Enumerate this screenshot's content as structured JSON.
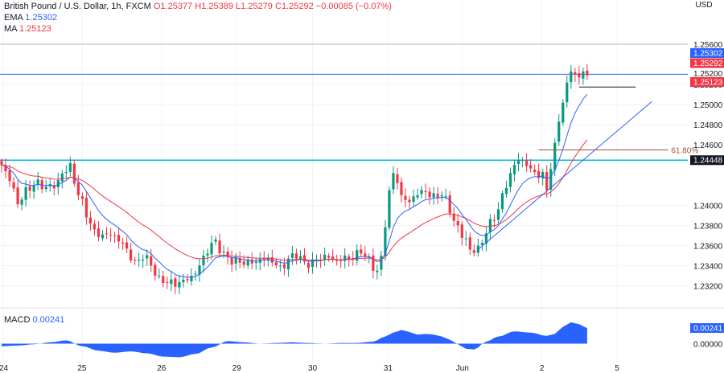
{
  "legend": {
    "symbol": "British Pound / U.S. Dollar, 1h, FXCM",
    "open_label": "O",
    "open": "1.25377",
    "high_label": "H",
    "high": "1.25389",
    "low_label": "L",
    "low": "1.25279",
    "close_label": "C",
    "close": "1.25292",
    "change": "−0.00085 (−0.07%)",
    "ema_label": "EMA",
    "ema_value": "1.25302",
    "ma_label": "MA",
    "ma_value": "1.25123",
    "macd_label": "MACD",
    "macd_value": "0.00241"
  },
  "colors": {
    "up": "#089981",
    "down": "#f23645",
    "ema": "#2962ff",
    "ma": "#f23645",
    "resistance": "#2962ff",
    "support": "#00bcd4",
    "trendline": "#2962ff",
    "fib": "#a0522d",
    "macd": "#2962ff",
    "dark_tag": "#131722"
  },
  "chart_data": [
    {
      "type": "candlestick",
      "title": "British Pound / U.S. Dollar, 1h, FXCM",
      "currency_label": "USD",
      "ylim": [
        1.2306,
        1.2576
      ],
      "y_ticks": [
        "1.25600",
        "1.25200",
        "1.25000",
        "1.24800",
        "1.24600",
        "1.24000",
        "1.23800",
        "1.23600",
        "1.23400",
        "1.23200"
      ],
      "y_tick_values": [
        1.256,
        1.252,
        1.25,
        1.248,
        1.246,
        1.24,
        1.238,
        1.236,
        1.234,
        1.232
      ],
      "x_ticks": [
        "24",
        "25",
        "26",
        "29",
        "30",
        "31",
        "Jun",
        "2",
        "5"
      ],
      "x_tick_positions": [
        0.5,
        19.9,
        39.6,
        58.2,
        77.0,
        95.7,
        114.1,
        133.8,
        152.4
      ],
      "bars_visible": 146,
      "anchors": [
        [
          0,
          1.244
        ],
        [
          2,
          1.2424
        ],
        [
          4,
          1.2401
        ],
        [
          6,
          1.2418
        ],
        [
          8,
          1.242
        ],
        [
          10,
          1.2416
        ],
        [
          12,
          1.2421
        ],
        [
          14,
          1.2425
        ],
        [
          16,
          1.2433
        ],
        [
          17,
          1.2442
        ],
        [
          19,
          1.241
        ],
        [
          21,
          1.2388
        ],
        [
          23,
          1.2376
        ],
        [
          25,
          1.2371
        ],
        [
          27,
          1.237
        ],
        [
          29,
          1.2364
        ],
        [
          31,
          1.2357
        ],
        [
          33,
          1.2345
        ],
        [
          35,
          1.2346
        ],
        [
          37,
          1.234
        ],
        [
          39,
          1.233
        ],
        [
          41,
          1.2323
        ],
        [
          43,
          1.2319
        ],
        [
          45,
          1.2326
        ],
        [
          47,
          1.233
        ],
        [
          49,
          1.234
        ],
        [
          51,
          1.2352
        ],
        [
          53,
          1.2366
        ],
        [
          55,
          1.2354
        ],
        [
          57,
          1.2341
        ],
        [
          59,
          1.2343
        ],
        [
          61,
          1.2346
        ],
        [
          63,
          1.2344
        ],
        [
          65,
          1.2346
        ],
        [
          67,
          1.2343
        ],
        [
          69,
          1.234
        ],
        [
          71,
          1.2347
        ],
        [
          73,
          1.2347
        ],
        [
          75,
          1.2344
        ],
        [
          77,
          1.2346
        ],
        [
          79,
          1.2345
        ],
        [
          81,
          1.2348
        ],
        [
          83,
          1.2345
        ],
        [
          85,
          1.235
        ],
        [
          87,
          1.2346
        ],
        [
          89,
          1.2352
        ],
        [
          91,
          1.2349
        ],
        [
          93,
          1.2335
        ],
        [
          94,
          1.235
        ],
        [
          95,
          1.2378
        ],
        [
          96,
          1.2415
        ],
        [
          97,
          1.2432
        ],
        [
          98,
          1.2422
        ],
        [
          99,
          1.241
        ],
        [
          101,
          1.2403
        ],
        [
          103,
          1.241
        ],
        [
          105,
          1.2413
        ],
        [
          107,
          1.2412
        ],
        [
          109,
          1.241
        ],
        [
          111,
          1.2392
        ],
        [
          113,
          1.238
        ],
        [
          115,
          1.2367
        ],
        [
          116,
          1.2356
        ],
        [
          118,
          1.236
        ],
        [
          120,
          1.2372
        ],
        [
          122,
          1.2385
        ],
        [
          123,
          1.2396
        ],
        [
          124,
          1.2412
        ],
        [
          126,
          1.2432
        ],
        [
          128,
          1.2445
        ],
        [
          130,
          1.2439
        ],
        [
          132,
          1.2433
        ],
        [
          134,
          1.2433
        ],
        [
          135,
          1.2415
        ],
        [
          136,
          1.2436
        ],
        [
          137,
          1.2462
        ],
        [
          138,
          1.2483
        ],
        [
          139,
          1.2502
        ],
        [
          140,
          1.2522
        ],
        [
          141,
          1.2533
        ],
        [
          142,
          1.253
        ],
        [
          143,
          1.2527
        ],
        [
          144,
          1.2533
        ],
        [
          145,
          1.2529
        ]
      ],
      "ema": {
        "name": "EMA",
        "value": 1.25302
      },
      "ma": {
        "name": "MA",
        "value": 1.25123
      },
      "support_line": 1.24448,
      "resistance_line": 1.25302,
      "fib": {
        "label": "61.80%",
        "value": 1.2455,
        "from_bar": 133,
        "to_bar": 165
      },
      "local_low_line": {
        "value": 1.25175,
        "from_bar": 143,
        "to_bar": 157
      },
      "trendline": {
        "from": [
          118,
          1.2356
        ],
        "to": [
          161,
          1.2503
        ]
      },
      "price_tags": [
        {
          "text": "1.25302",
          "value": 1.25302,
          "style": "blue"
        },
        {
          "text": "1.25292",
          "value": 1.25292,
          "style": "red"
        },
        {
          "text": "1.25200",
          "value": 1.252,
          "style": "plain"
        },
        {
          "text": "1.25123",
          "value": 1.25123,
          "style": "red"
        },
        {
          "text": "1.24448",
          "value": 1.24448,
          "style": "dark"
        }
      ]
    },
    {
      "type": "area",
      "title": "MACD",
      "ylim": [
        -0.0028,
        0.0049
      ],
      "y_ticks": [
        "0.00000"
      ],
      "y_tick_values": [
        0
      ],
      "value_tag": "0.00241",
      "value": 0.00241,
      "x": [
        0,
        4,
        8,
        12,
        16,
        20,
        24,
        28,
        32,
        36,
        40,
        44,
        48,
        52,
        56,
        60,
        64,
        68,
        72,
        76,
        80,
        84,
        88,
        92,
        95,
        97,
        99,
        101,
        103,
        105,
        107,
        109,
        111,
        113,
        115,
        117,
        120,
        123,
        127,
        131,
        135,
        137,
        139,
        141,
        143,
        145
      ],
      "values": [
        -0.0004,
        -0.0003,
        -0.0001,
        0.0002,
        0.0005,
        -0.0004,
        -0.0011,
        -0.0014,
        -0.0012,
        -0.0015,
        -0.002,
        -0.0021,
        -0.0016,
        -0.0006,
        0.0004,
        0.0002,
        0.0,
        0.0001,
        0.0002,
        0.0001,
        0.0,
        0.0001,
        0.0001,
        0.0003,
        0.0011,
        0.0017,
        0.0021,
        0.0018,
        0.0014,
        0.0015,
        0.0014,
        0.0011,
        0.0006,
        -0.0001,
        -0.0008,
        -0.0009,
        0.0003,
        0.0011,
        0.0019,
        0.0017,
        0.0012,
        0.0015,
        0.0026,
        0.0033,
        0.003,
        0.0024
      ]
    }
  ]
}
